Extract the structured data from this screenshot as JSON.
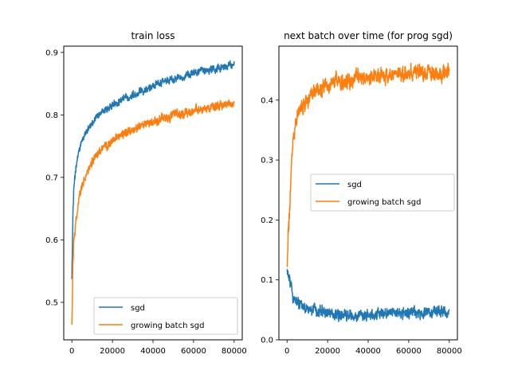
{
  "chart_data": [
    {
      "type": "line",
      "title": "train loss",
      "xlabel": "",
      "ylabel": "",
      "xlim": [
        -4000,
        84000
      ],
      "ylim": [
        0.44,
        0.91
      ],
      "xticks": [
        0,
        20000,
        40000,
        60000,
        80000
      ],
      "xtick_labels": [
        "0",
        "20000",
        "40000",
        "60000",
        "80000"
      ],
      "yticks": [
        0.5,
        0.6,
        0.7,
        0.8,
        0.9
      ],
      "ytick_labels": [
        "0.5",
        "0.6",
        "0.7",
        "0.8",
        "0.9"
      ],
      "grid": false,
      "legend_position": "lower-right",
      "series": [
        {
          "name": "sgd",
          "color": "#1f77b4",
          "x": [
            0,
            500,
            1000,
            2000,
            3000,
            4000,
            5000,
            6000,
            8000,
            10000,
            12000,
            15000,
            20000,
            25000,
            30000,
            35000,
            40000,
            45000,
            50000,
            55000,
            60000,
            65000,
            70000,
            75000,
            80000
          ],
          "y": [
            0.54,
            0.64,
            0.68,
            0.715,
            0.735,
            0.748,
            0.758,
            0.766,
            0.778,
            0.787,
            0.795,
            0.805,
            0.815,
            0.825,
            0.832,
            0.84,
            0.846,
            0.852,
            0.857,
            0.862,
            0.866,
            0.87,
            0.874,
            0.877,
            0.88
          ],
          "noise": 0.005
        },
        {
          "name": "growing batch sgd",
          "color": "#ff7f0e",
          "x": [
            0,
            500,
            1000,
            2000,
            3000,
            4000,
            5000,
            6000,
            8000,
            10000,
            12000,
            15000,
            20000,
            25000,
            30000,
            35000,
            40000,
            45000,
            50000,
            55000,
            60000,
            65000,
            70000,
            75000,
            80000
          ],
          "y": [
            0.463,
            0.56,
            0.6,
            0.63,
            0.655,
            0.672,
            0.685,
            0.695,
            0.71,
            0.725,
            0.735,
            0.745,
            0.757,
            0.768,
            0.776,
            0.783,
            0.789,
            0.795,
            0.799,
            0.803,
            0.806,
            0.809,
            0.812,
            0.815,
            0.818
          ],
          "noise": 0.006
        }
      ]
    },
    {
      "type": "line",
      "title": "next batch over time (for prog sgd)",
      "xlabel": "",
      "ylabel": "",
      "xlim": [
        -4000,
        84000
      ],
      "ylim": [
        0.0,
        0.49
      ],
      "xticks": [
        0,
        20000,
        40000,
        60000,
        80000
      ],
      "xtick_labels": [
        "0",
        "20000",
        "40000",
        "60000",
        "80000"
      ],
      "yticks": [
        0.0,
        0.1,
        0.2,
        0.3,
        0.4
      ],
      "ytick_labels": [
        "0.0",
        "0.1",
        "0.2",
        "0.3",
        "0.4"
      ],
      "grid": false,
      "legend_position": "center-right",
      "series": [
        {
          "name": "sgd",
          "color": "#1f77b4",
          "x": [
            0,
            500,
            1000,
            2000,
            3000,
            4000,
            5000,
            6000,
            8000,
            10000,
            12000,
            15000,
            20000,
            25000,
            30000,
            35000,
            40000,
            45000,
            50000,
            55000,
            60000,
            65000,
            70000,
            75000,
            80000
          ],
          "y": [
            0.11,
            0.11,
            0.1,
            0.085,
            0.07,
            0.065,
            0.06,
            0.058,
            0.055,
            0.052,
            0.05,
            0.048,
            0.045,
            0.042,
            0.04,
            0.04,
            0.042,
            0.044,
            0.045,
            0.046,
            0.045,
            0.045,
            0.046,
            0.047,
            0.048
          ],
          "noise": 0.008
        },
        {
          "name": "growing batch sgd",
          "color": "#ff7f0e",
          "x": [
            0,
            500,
            1000,
            2000,
            3000,
            4000,
            5000,
            6000,
            8000,
            10000,
            12000,
            15000,
            20000,
            25000,
            30000,
            35000,
            40000,
            45000,
            50000,
            55000,
            60000,
            65000,
            70000,
            75000,
            80000
          ],
          "y": [
            0.12,
            0.15,
            0.2,
            0.28,
            0.33,
            0.355,
            0.37,
            0.38,
            0.39,
            0.4,
            0.41,
            0.42,
            0.425,
            0.43,
            0.433,
            0.435,
            0.438,
            0.44,
            0.44,
            0.442,
            0.443,
            0.445,
            0.445,
            0.446,
            0.447
          ],
          "noise": 0.011
        }
      ]
    }
  ]
}
